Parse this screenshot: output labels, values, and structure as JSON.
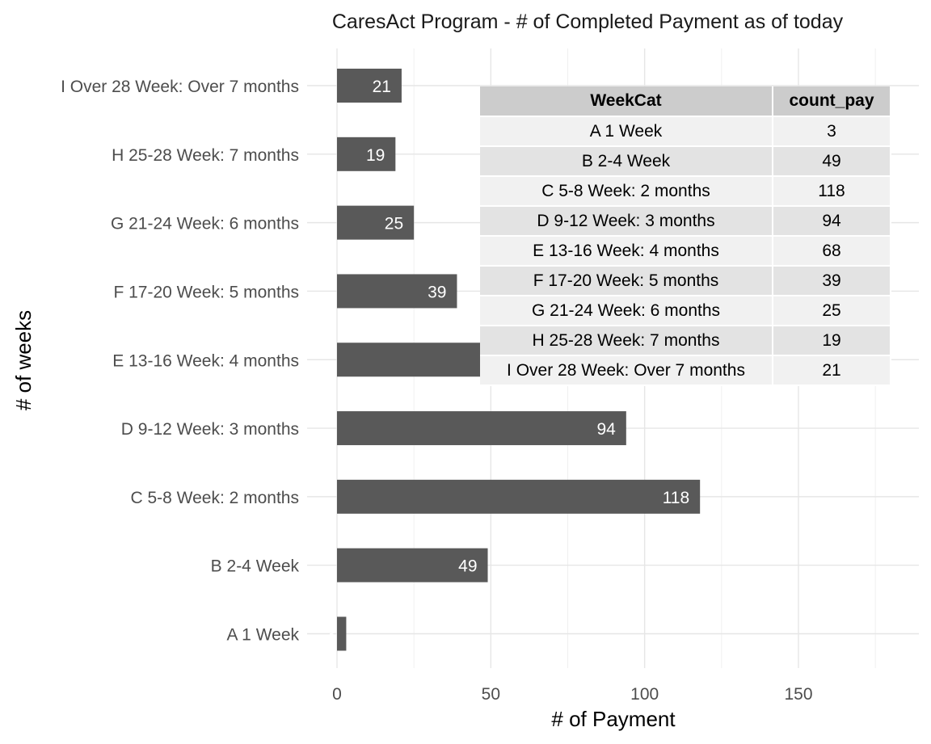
{
  "chart_data": {
    "type": "bar",
    "orientation": "horizontal",
    "title": "CaresAct Program - # of Completed Payment as of today",
    "xlabel": "# of Payment",
    "ylabel": "# of weeks",
    "categories": [
      "A 1 Week",
      "B 2-4 Week",
      "C 5-8 Week: 2 months",
      "D 9-12 Week: 3 months",
      "E 13-16 Week: 4 months",
      "F 17-20 Week: 5 months",
      "G 21-24 Week: 6 months",
      "H 25-28 Week: 7 months",
      "I Over 28 Week: Over 7 months"
    ],
    "values": [
      3,
      49,
      118,
      94,
      68,
      39,
      25,
      19,
      21
    ],
    "xlim": [
      0,
      190
    ],
    "xticks": [
      0,
      50,
      100,
      150
    ],
    "grid": true,
    "bar_color": "#595959",
    "label_color": "#ffffff"
  },
  "inset_table": {
    "headers": [
      "WeekCat",
      "count_pay"
    ],
    "rows": [
      [
        "A 1 Week",
        "3"
      ],
      [
        "B 2-4 Week",
        "49"
      ],
      [
        "C 5-8 Week: 2 months",
        "118"
      ],
      [
        "D 9-12 Week: 3 months",
        "94"
      ],
      [
        "E 13-16 Week: 4 months",
        "68"
      ],
      [
        "F 17-20 Week: 5 months",
        "39"
      ],
      [
        "G 21-24 Week: 6 months",
        "25"
      ],
      [
        "H 25-28 Week: 7 months",
        "19"
      ],
      [
        "I Over 28 Week: Over 7 months",
        "21"
      ]
    ]
  }
}
